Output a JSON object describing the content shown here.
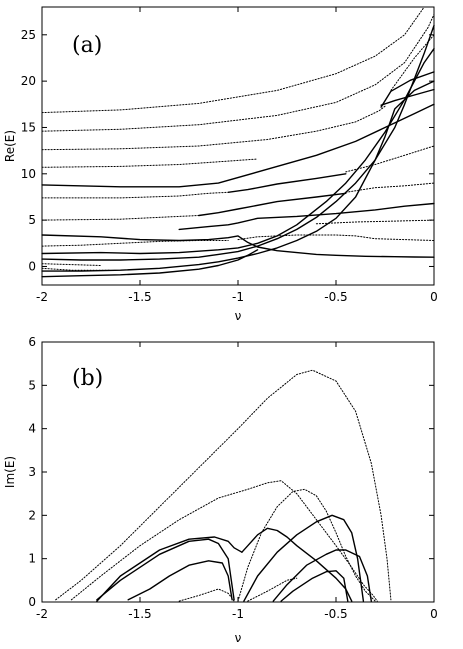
{
  "chart_data": [
    {
      "type": "line",
      "panel_label": "(a)",
      "xlabel": "ν",
      "ylabel": "Re(E)",
      "xlim": [
        -2,
        0
      ],
      "ylim": [
        -2,
        28
      ],
      "xticks": [
        -2,
        -1.5,
        -1,
        -0.5,
        0
      ],
      "xtick_labels": [
        "-2",
        "-1.5",
        "-1",
        "-0.5",
        "0"
      ],
      "yticks": [
        0,
        5,
        10,
        15,
        20,
        25
      ],
      "ytick_labels": [
        "0",
        "5",
        "10",
        "15",
        "20",
        "25"
      ],
      "grid": false,
      "legend": "none",
      "series": [
        {
          "style": "dotted",
          "x": [
            -2,
            -1.6,
            -1.2,
            -0.8,
            -0.5,
            -0.3,
            -0.15,
            -0.05
          ],
          "y": [
            16.6,
            16.9,
            17.6,
            19.0,
            20.8,
            22.7,
            25.0,
            28.0
          ]
        },
        {
          "style": "dotted",
          "x": [
            -2,
            -1.6,
            -1.2,
            -0.8,
            -0.5,
            -0.3,
            -0.15,
            -0.03,
            0
          ],
          "y": [
            14.6,
            14.8,
            15.3,
            16.3,
            17.7,
            19.6,
            22.0,
            25.8,
            27.2
          ]
        },
        {
          "style": "dotted",
          "x": [
            -2,
            -1.6,
            -1.2,
            -0.85,
            -0.6,
            -0.4,
            -0.28,
            -0.25
          ],
          "y": [
            12.6,
            12.7,
            13.0,
            13.7,
            14.6,
            15.6,
            16.8,
            17.3
          ]
        },
        {
          "style": "solid",
          "x": [
            -0.27,
            -0.2,
            -0.1,
            0
          ],
          "y": [
            17.4,
            17.9,
            18.5,
            19.1
          ]
        },
        {
          "style": "solid",
          "x": [
            -0.27,
            -0.22,
            -0.12,
            0
          ],
          "y": [
            17.2,
            18.9,
            20.1,
            21.0
          ]
        },
        {
          "style": "dotted",
          "x": [
            -0.22,
            -0.1,
            0
          ],
          "y": [
            19.0,
            22.5,
            25.0
          ]
        },
        {
          "style": "dotted",
          "x": [
            -2,
            -1.6,
            -1.3,
            -1.1,
            -0.9
          ],
          "y": [
            10.7,
            10.8,
            11.0,
            11.3,
            11.6
          ]
        },
        {
          "style": "solid",
          "x": [
            -2,
            -1.6,
            -1.3,
            -1.1,
            -0.85,
            -0.6,
            -0.4,
            -0.25,
            -0.1,
            0
          ],
          "y": [
            8.8,
            8.6,
            8.6,
            9.0,
            10.5,
            12.0,
            13.5,
            15.0,
            16.5,
            17.5
          ]
        },
        {
          "style": "dotted",
          "x": [
            -2,
            -1.6,
            -1.3,
            -1.15,
            -1.05
          ],
          "y": [
            7.4,
            7.4,
            7.6,
            7.9,
            8.0
          ]
        },
        {
          "style": "solid",
          "x": [
            -1.05,
            -0.95,
            -0.8,
            -0.6,
            -0.45
          ],
          "y": [
            8.0,
            8.3,
            8.9,
            9.5,
            10.0
          ]
        },
        {
          "style": "dotted",
          "x": [
            -0.45,
            -0.3,
            -0.15,
            0
          ],
          "y": [
            10.2,
            11.0,
            12.0,
            13.0
          ]
        },
        {
          "style": "dotted",
          "x": [
            -2,
            -1.6,
            -1.3,
            -1.2
          ],
          "y": [
            5.0,
            5.1,
            5.4,
            5.5
          ]
        },
        {
          "style": "solid",
          "x": [
            -1.2,
            -1.1,
            -1.0,
            -0.95,
            -0.8,
            -0.6,
            -0.45
          ],
          "y": [
            5.5,
            5.8,
            6.2,
            6.4,
            7.0,
            7.5,
            7.9
          ]
        },
        {
          "style": "dotted",
          "x": [
            -0.45,
            -0.3,
            -0.15,
            0
          ],
          "y": [
            8.0,
            8.5,
            8.7,
            9.0
          ]
        },
        {
          "style": "solid",
          "x": [
            -1.3,
            -1.15,
            -1.05,
            -1.0,
            -0.9,
            -0.7,
            -0.5,
            -0.3,
            -0.15,
            0
          ],
          "y": [
            4.0,
            4.3,
            4.5,
            4.7,
            5.2,
            5.4,
            5.7,
            6.1,
            6.5,
            6.8
          ]
        },
        {
          "style": "dotted",
          "x": [
            -0.6,
            -0.4,
            -0.2,
            0
          ],
          "y": [
            4.6,
            4.8,
            4.9,
            5.0
          ]
        },
        {
          "style": "solid",
          "x": [
            -2,
            -1.7,
            -1.5,
            -1.3,
            -1.15,
            -1.05,
            -1.0,
            -0.95,
            -0.9,
            -0.8,
            -0.7,
            -0.6,
            -0.5,
            -0.35,
            -0.2,
            -0.1,
            0
          ],
          "y": [
            3.4,
            3.2,
            2.9,
            2.8,
            2.9,
            3.1,
            3.3,
            2.6,
            2.1,
            1.7,
            1.5,
            1.3,
            1.2,
            1.1,
            1.05,
            1.02,
            1.0
          ]
        },
        {
          "style": "dotted",
          "x": [
            -1.0,
            -0.9,
            -0.7,
            -0.5,
            -0.4,
            -0.3,
            -0.15,
            0
          ],
          "y": [
            2.9,
            3.2,
            3.4,
            3.4,
            3.3,
            3.0,
            2.9,
            2.8
          ]
        },
        {
          "style": "dotted",
          "x": [
            -2,
            -1.8,
            -1.6,
            -1.4,
            -1.2,
            -1.05
          ],
          "y": [
            2.2,
            2.3,
            2.5,
            2.7,
            2.8,
            2.8
          ]
        },
        {
          "style": "solid",
          "x": [
            -2,
            -1.7,
            -1.5,
            -1.3,
            -1.1,
            -1.0,
            -0.9,
            -0.8,
            -0.7,
            -0.55,
            -0.45,
            -0.35,
            -0.25,
            -0.15,
            -0.05,
            0
          ],
          "y": [
            1.4,
            1.5,
            1.4,
            1.5,
            1.8,
            2.0,
            2.5,
            3.3,
            4.5,
            7.0,
            9.0,
            11.5,
            14.5,
            18.0,
            22.0,
            23.5
          ]
        },
        {
          "style": "solid",
          "x": [
            -2,
            -1.8,
            -1.6,
            -1.4,
            -1.2,
            -1.1,
            -1.0,
            -0.9,
            -0.8,
            -0.7,
            -0.6,
            -0.5,
            -0.4,
            -0.3,
            -0.2,
            -0.15,
            -0.05,
            0
          ],
          "y": [
            0.8,
            0.7,
            0.7,
            0.8,
            1.0,
            1.3,
            1.6,
            2.2,
            3.0,
            4.0,
            5.3,
            7.0,
            9.0,
            11.5,
            15.0,
            17.5,
            23.0,
            26.0
          ]
        },
        {
          "style": "solid",
          "x": [
            -2,
            -1.8,
            -1.6,
            -1.4,
            -1.2,
            -1.1,
            -1.0,
            -0.9,
            -0.8,
            -0.7,
            -0.6,
            -0.5,
            -0.4,
            -0.3,
            -0.25,
            -0.2,
            -0.1,
            0
          ],
          "y": [
            -0.5,
            -0.5,
            -0.4,
            -0.2,
            0.2,
            0.5,
            0.9,
            1.4,
            2.0,
            2.8,
            3.8,
            5.2,
            7.5,
            11.5,
            14.0,
            17.0,
            19.0,
            20.0
          ]
        },
        {
          "style": "solid",
          "x": [
            -2,
            -1.8,
            -1.6,
            -1.4,
            -1.2,
            -1.1,
            -1.0,
            -0.95,
            -0.9
          ],
          "y": [
            -1.1,
            -1.0,
            -0.9,
            -0.7,
            -0.3,
            0.1,
            0.7,
            1.2,
            1.8
          ]
        },
        {
          "style": "dotted",
          "x": [
            -2,
            -1.85,
            -1.7
          ],
          "y": [
            0.3,
            0.2,
            0.1
          ]
        },
        {
          "style": "dotted",
          "x": [
            -2,
            -1.85,
            -1.65
          ],
          "y": [
            -0.2,
            -0.4,
            -0.4
          ]
        }
      ]
    },
    {
      "type": "line",
      "panel_label": "(b)",
      "xlabel": "ν",
      "ylabel": "Im(E)",
      "xlim": [
        -2,
        0
      ],
      "ylim": [
        0,
        6
      ],
      "xticks": [
        -2,
        -1.5,
        -1,
        -0.5,
        0
      ],
      "xtick_labels": [
        "-2",
        "-1.5",
        "-1",
        "-0.5",
        "0"
      ],
      "yticks": [
        0,
        1,
        2,
        3,
        4,
        5,
        6
      ],
      "ytick_labels": [
        "0",
        "1",
        "2",
        "3",
        "4",
        "5",
        "6"
      ],
      "grid": false,
      "legend": "none",
      "series": [
        {
          "style": "dotted",
          "x": [
            -1.93,
            -1.8,
            -1.6,
            -1.4,
            -1.2,
            -1.0,
            -0.85,
            -0.7,
            -0.62,
            -0.5,
            -0.4,
            -0.32,
            -0.27,
            -0.24,
            -0.22
          ],
          "y": [
            0.05,
            0.5,
            1.3,
            2.2,
            3.1,
            4.0,
            4.7,
            5.25,
            5.35,
            5.1,
            4.4,
            3.2,
            2.0,
            1.0,
            0.05
          ]
        },
        {
          "style": "dotted",
          "x": [
            -1.85,
            -1.7,
            -1.5,
            -1.3,
            -1.1,
            -0.95,
            -0.85,
            -0.78,
            -0.7,
            -0.6,
            -0.5,
            -0.42,
            -0.36,
            -0.31,
            -0.29
          ],
          "y": [
            0.05,
            0.6,
            1.3,
            1.9,
            2.4,
            2.6,
            2.75,
            2.8,
            2.5,
            1.9,
            1.3,
            0.8,
            0.4,
            0.15,
            0.02
          ]
        },
        {
          "style": "solid",
          "x": [
            -1.72,
            -1.6,
            -1.4,
            -1.25,
            -1.15,
            -1.1,
            -1.05,
            -1.02
          ],
          "y": [
            0.05,
            0.5,
            1.1,
            1.4,
            1.45,
            1.35,
            1.0,
            0.05
          ]
        },
        {
          "style": "solid",
          "x": [
            -1.56,
            -1.45,
            -1.35,
            -1.25,
            -1.15,
            -1.08,
            -1.05,
            -1.03
          ],
          "y": [
            0.05,
            0.3,
            0.6,
            0.85,
            0.95,
            0.9,
            0.6,
            0.05
          ]
        },
        {
          "style": "solid",
          "x": [
            -1.72,
            -1.6,
            -1.4,
            -1.25,
            -1.12,
            -1.05,
            -1.02,
            -0.98
          ],
          "y": [
            0.02,
            0.6,
            1.2,
            1.45,
            1.5,
            1.4,
            1.25,
            1.15
          ]
        },
        {
          "style": "solid",
          "x": [
            -0.98,
            -0.95,
            -0.9,
            -0.85,
            -0.8,
            -0.75,
            -0.7,
            -0.6,
            -0.5,
            -0.45,
            -0.42
          ],
          "y": [
            1.15,
            1.3,
            1.55,
            1.7,
            1.65,
            1.5,
            1.3,
            0.95,
            0.55,
            0.3,
            0.02
          ]
        },
        {
          "style": "dotted",
          "x": [
            -1.3,
            -1.2,
            -1.1,
            -1.05,
            -1.02
          ],
          "y": [
            0.02,
            0.15,
            0.3,
            0.2,
            0.02
          ]
        },
        {
          "style": "dotted",
          "x": [
            -1.0,
            -0.95,
            -0.88,
            -0.8,
            -0.72,
            -0.66,
            -0.6,
            -0.55,
            -0.5,
            -0.45,
            -0.4,
            -0.35,
            -0.3
          ],
          "y": [
            0.02,
            0.8,
            1.6,
            2.2,
            2.55,
            2.6,
            2.45,
            2.1,
            1.6,
            1.05,
            0.6,
            0.25,
            0.02
          ]
        },
        {
          "style": "solid",
          "x": [
            -0.97,
            -0.9,
            -0.8,
            -0.7,
            -0.6,
            -0.52,
            -0.46,
            -0.42,
            -0.39,
            -0.36
          ],
          "y": [
            0.02,
            0.6,
            1.15,
            1.55,
            1.85,
            2.0,
            1.9,
            1.6,
            1.0,
            0.02
          ]
        },
        {
          "style": "dotted",
          "x": [
            -0.95,
            -0.85,
            -0.75,
            -0.7
          ],
          "y": [
            0.02,
            0.25,
            0.5,
            0.55
          ]
        },
        {
          "style": "solid",
          "x": [
            -0.82,
            -0.75,
            -0.65,
            -0.55,
            -0.5,
            -0.45,
            -0.38,
            -0.34,
            -0.32
          ],
          "y": [
            0.02,
            0.4,
            0.85,
            1.1,
            1.2,
            1.2,
            1.05,
            0.6,
            0.02
          ]
        },
        {
          "style": "solid",
          "x": [
            -0.78,
            -0.72,
            -0.62,
            -0.55,
            -0.5,
            -0.46,
            -0.44
          ],
          "y": [
            0.02,
            0.25,
            0.55,
            0.7,
            0.72,
            0.55,
            0.02
          ]
        }
      ]
    }
  ]
}
